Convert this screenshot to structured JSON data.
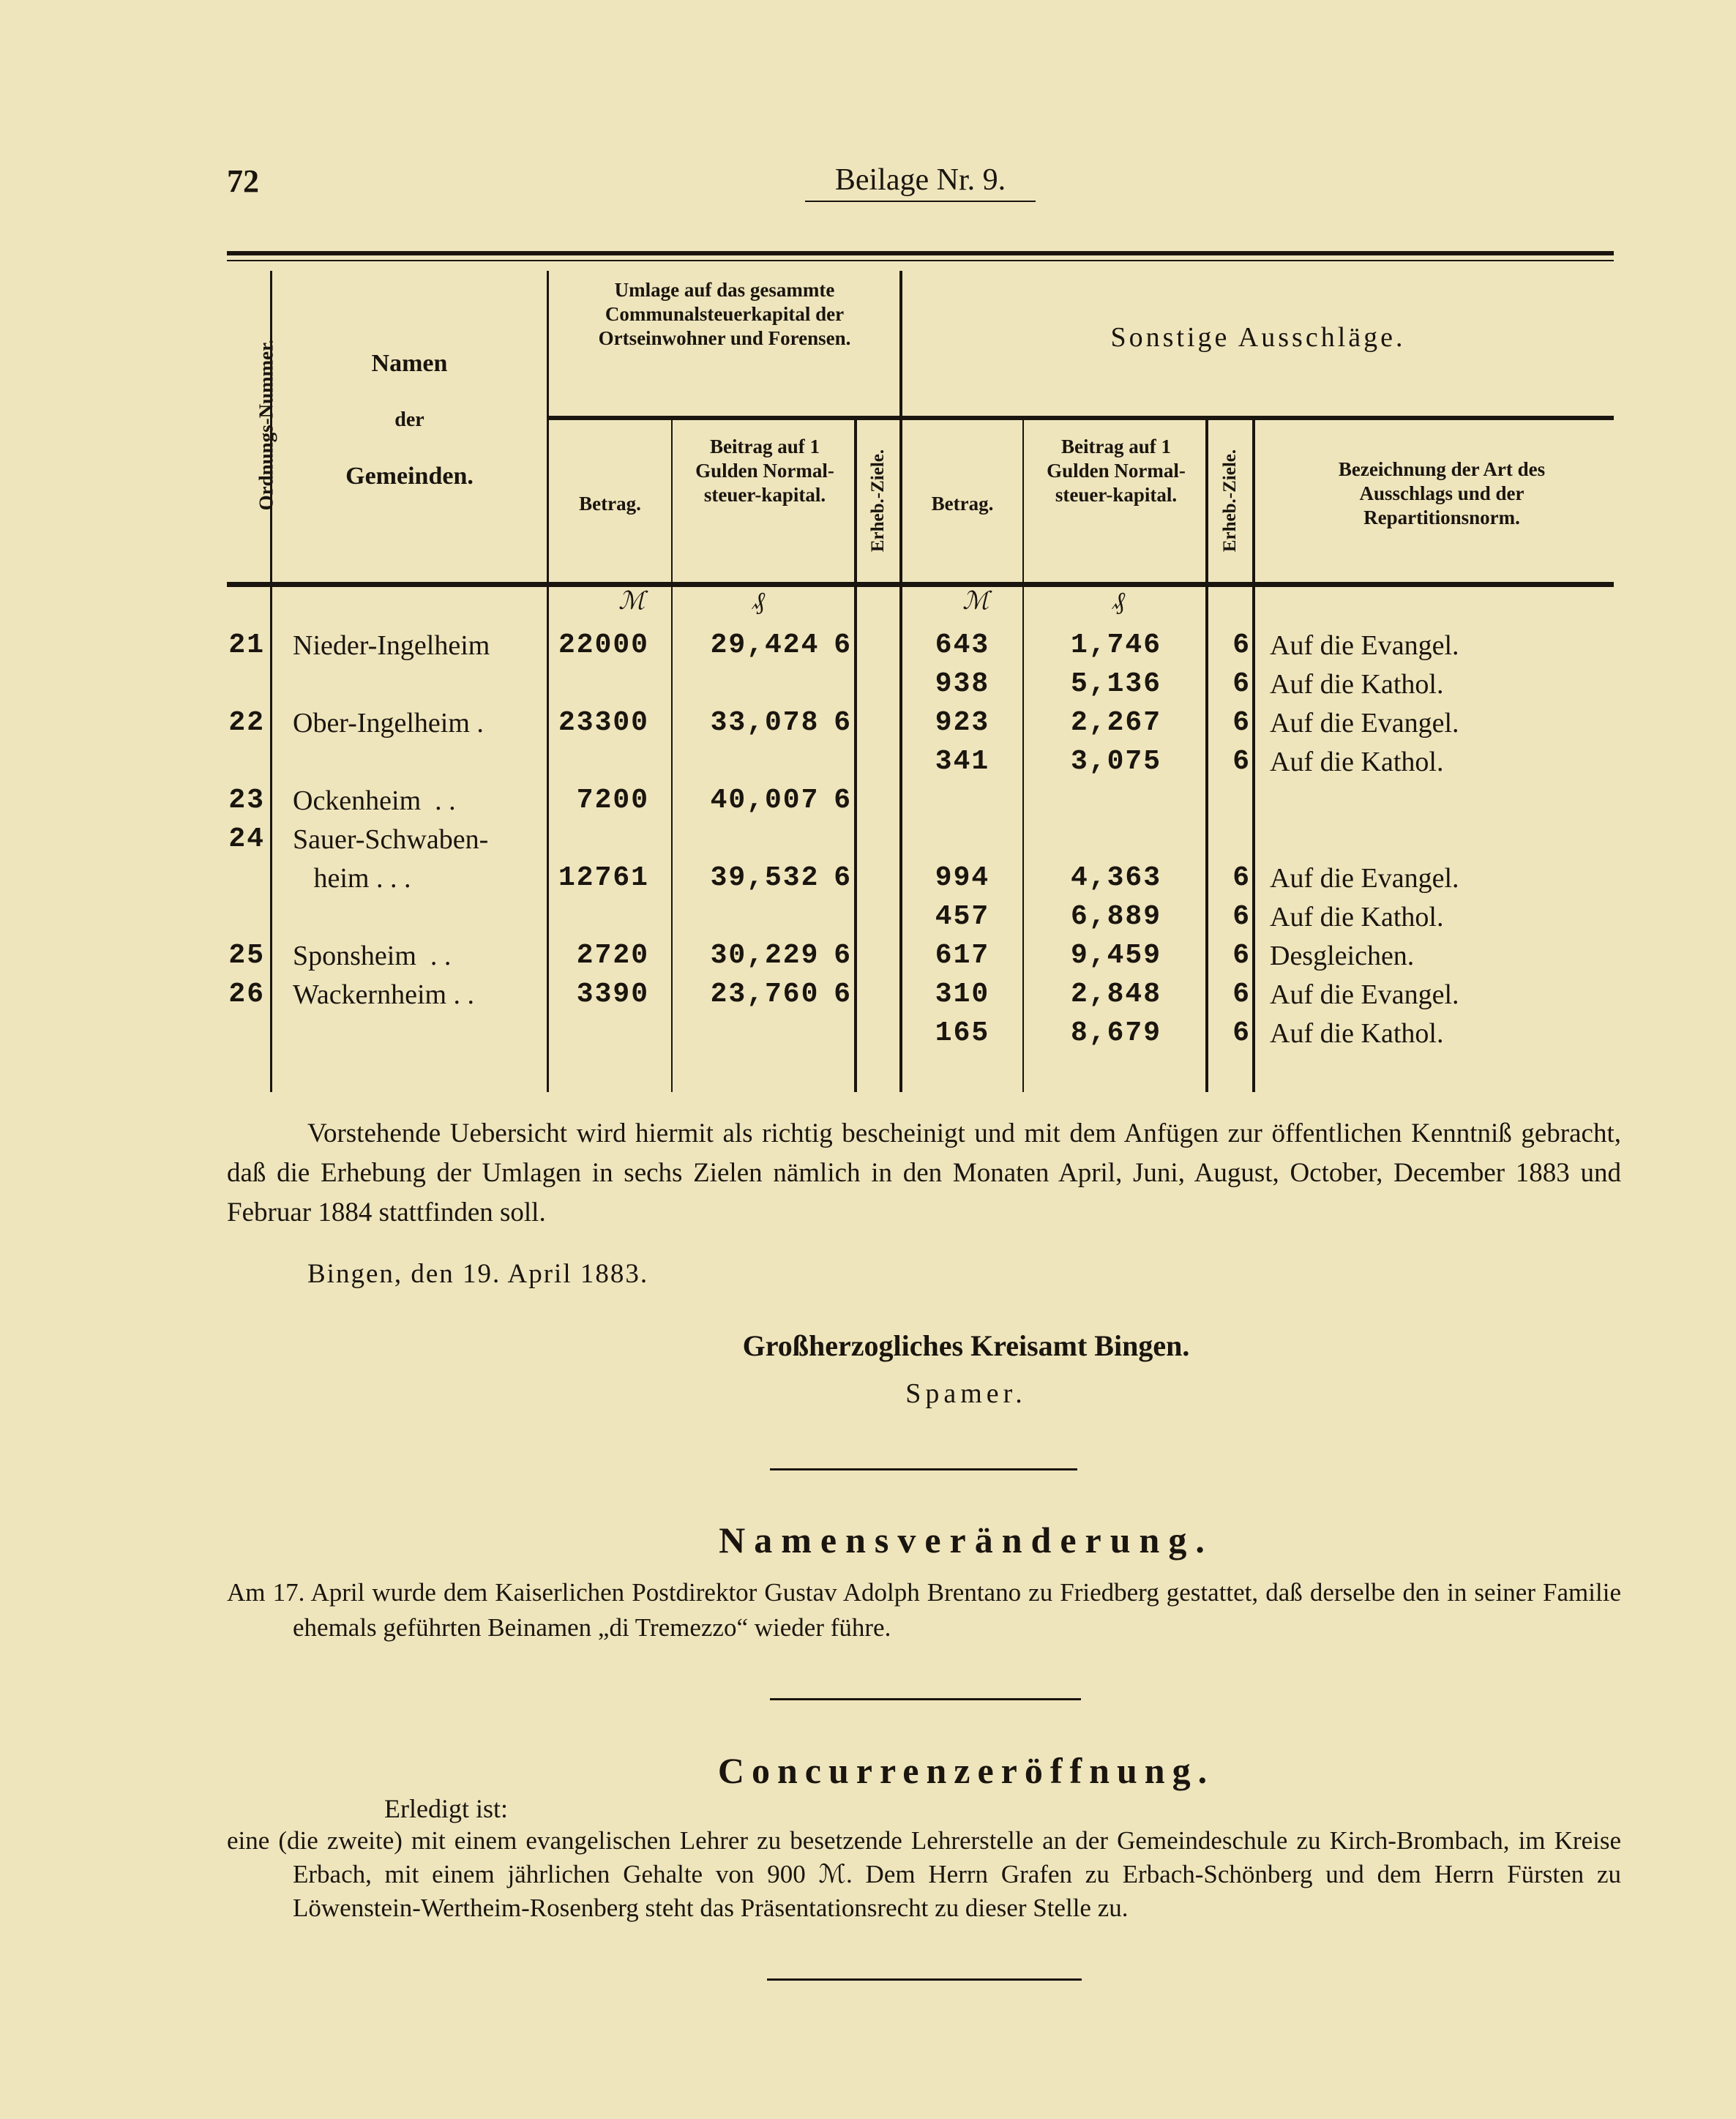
{
  "page_number": "72",
  "running_title": "Beilage Nr. 9.",
  "table": {
    "headers": {
      "ordnungs_nummer": "Ordnungs-Nummer.",
      "namen": [
        "Namen",
        "der",
        "Gemeinden."
      ],
      "umlage": "Umlage auf das gesammte Communalsteuerkapital der Ortseinwohner und Forensen.",
      "sonstige": "Sonstige Ausschläge.",
      "betrag": "Betrag.",
      "beitrag": "Beitrag auf 1 Gulden Normal-steuer-kapital.",
      "ziele": "Erheb.-Ziele.",
      "bezeichnung": "Bezeichnung der Art des Ausschlags und der Repartitionsnorm."
    },
    "units": {
      "mark": "ℳ",
      "pfennig": "₰"
    },
    "rows": [
      {
        "num": "21",
        "name": "Nieder-Ingelheim",
        "betrag": "22000",
        "beitrag": "29,424",
        "ziele": "6",
        "s_betrag": "643",
        "s_beitrag": "1,746",
        "s_ziele": "6",
        "bez": "Auf die Evangel."
      },
      {
        "num": "",
        "name": "",
        "betrag": "",
        "beitrag": "",
        "ziele": "",
        "s_betrag": "938",
        "s_beitrag": "5,136",
        "s_ziele": "6",
        "bez": "Auf die Kathol."
      },
      {
        "num": "22",
        "name": "Ober-Ingelheim .",
        "betrag": "23300",
        "beitrag": "33,078",
        "ziele": "6",
        "s_betrag": "923",
        "s_beitrag": "2,267",
        "s_ziele": "6",
        "bez": "Auf die Evangel."
      },
      {
        "num": "",
        "name": "",
        "betrag": "",
        "beitrag": "",
        "ziele": "",
        "s_betrag": "341",
        "s_beitrag": "3,075",
        "s_ziele": "6",
        "bez": "Auf die Kathol."
      },
      {
        "num": "23",
        "name": "Ockenheim  . .",
        "betrag": "7200",
        "beitrag": "40,007",
        "ziele": "6",
        "s_betrag": "",
        "s_beitrag": "",
        "s_ziele": "",
        "bez": ""
      },
      {
        "num": "24",
        "name": "Sauer-Schwaben-",
        "betrag": "",
        "beitrag": "",
        "ziele": "",
        "s_betrag": "",
        "s_beitrag": "",
        "s_ziele": "",
        "bez": ""
      },
      {
        "num": "",
        "name": "   heim . . .",
        "betrag": "12761",
        "beitrag": "39,532",
        "ziele": "6",
        "s_betrag": "994",
        "s_beitrag": "4,363",
        "s_ziele": "6",
        "bez": "Auf die Evangel."
      },
      {
        "num": "",
        "name": "",
        "betrag": "",
        "beitrag": "",
        "ziele": "",
        "s_betrag": "457",
        "s_beitrag": "6,889",
        "s_ziele": "6",
        "bez": "Auf die Kathol."
      },
      {
        "num": "25",
        "name": "Sponsheim  . .",
        "betrag": "2720",
        "beitrag": "30,229",
        "ziele": "6",
        "s_betrag": "617",
        "s_beitrag": "9,459",
        "s_ziele": "6",
        "bez": "Desgleichen."
      },
      {
        "num": "26",
        "name": "Wackernheim . .",
        "betrag": "3390",
        "beitrag": "23,760",
        "ziele": "6",
        "s_betrag": "310",
        "s_beitrag": "2,848",
        "s_ziele": "6",
        "bez": "Auf die Evangel."
      },
      {
        "num": "",
        "name": "",
        "betrag": "",
        "beitrag": "",
        "ziele": "",
        "s_betrag": "165",
        "s_beitrag": "8,679",
        "s_ziele": "6",
        "bez": "Auf die Kathol."
      }
    ]
  },
  "certification": "Vorstehende Uebersicht wird hiermit als richtig bescheinigt und mit dem Anfügen zur öffentlichen Kenntniß gebracht, daß die Erhebung der Umlagen in sechs Zielen nämlich in den Monaten April, Juni, August, October, December 1883 und Februar 1884 stattfinden soll.",
  "place_date": "Bingen, den 19. April 1883.",
  "authority": "Großherzogliches Kreisamt Bingen.",
  "signature": "Spamer.",
  "section1": {
    "heading": "Namensveränderung.",
    "text": "Am 17. April wurde dem Kaiserlichen Postdirektor Gustav Adolph Brentano zu Friedberg gestattet, daß derselbe den in seiner Familie ehemals geführten Beinamen „di Tremezzo“ wieder führe."
  },
  "section2": {
    "heading": "Concurrenzeröffnung.",
    "intro": "Erledigt ist:",
    "text": "eine (die zweite) mit einem evangelischen Lehrer zu besetzende Lehrerstelle an der Gemeindeschule zu Kirch-Brombach, im Kreise Erbach, mit einem jährlichen Gehalte von 900 ℳ. Dem Herrn Grafen zu Erbach-Schönberg und dem Herrn Fürsten zu Löwenstein-Wertheim-Rosenberg steht das Präsentationsrecht zu dieser Stelle zu."
  }
}
